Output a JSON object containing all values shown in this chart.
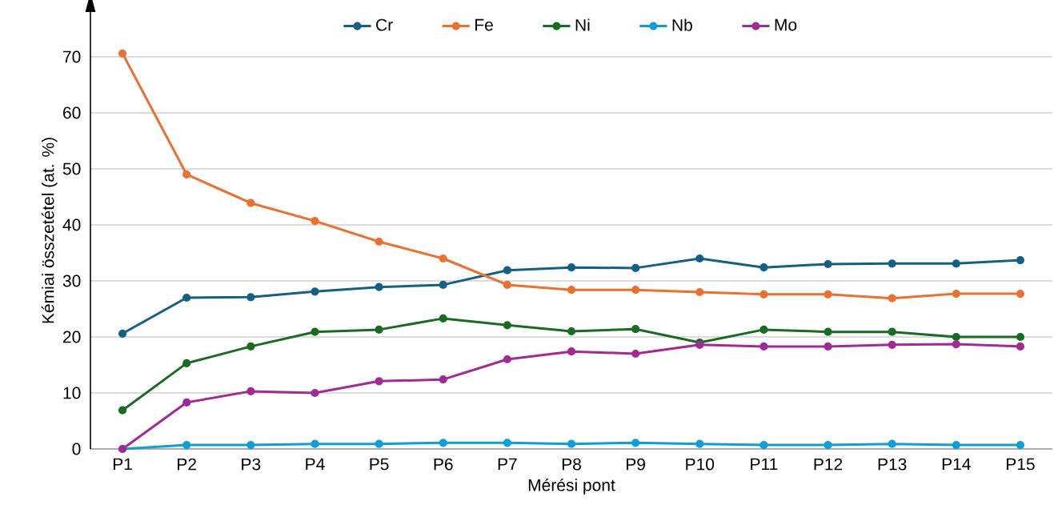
{
  "chart_data": {
    "type": "line",
    "xlabel": "Mérési pont",
    "ylabel": "Kémiai összetétel (at. %)",
    "categories": [
      "P1",
      "P2",
      "P3",
      "P4",
      "P5",
      "P6",
      "P7",
      "P8",
      "P9",
      "P10",
      "P11",
      "P12",
      "P13",
      "P14",
      "P15"
    ],
    "series": [
      {
        "name": "Cr",
        "color": "#156082",
        "values": [
          20.6,
          27.0,
          27.1,
          28.1,
          28.9,
          29.3,
          31.9,
          32.4,
          32.3,
          34.0,
          32.4,
          33.0,
          33.1,
          33.1,
          33.7
        ]
      },
      {
        "name": "Fe",
        "color": "#e97132",
        "values": [
          70.6,
          49.0,
          43.9,
          40.7,
          37.0,
          34.0,
          29.3,
          28.4,
          28.4,
          28.0,
          27.6,
          27.6,
          26.9,
          27.7,
          27.7
        ]
      },
      {
        "name": "Ni",
        "color": "#196b24",
        "values": [
          6.9,
          15.3,
          18.3,
          20.9,
          21.3,
          23.3,
          22.1,
          21.0,
          21.4,
          19.0,
          21.3,
          20.9,
          20.9,
          20.0,
          20.0
        ]
      },
      {
        "name": "Nb",
        "color": "#0f9ed5",
        "values": [
          0.0,
          0.7,
          0.7,
          0.9,
          0.9,
          1.1,
          1.1,
          0.9,
          1.1,
          0.9,
          0.7,
          0.7,
          0.9,
          0.7,
          0.7
        ]
      },
      {
        "name": "Mo",
        "color": "#a02b93",
        "values": [
          0.0,
          8.3,
          10.3,
          10.0,
          12.1,
          12.4,
          16.0,
          17.4,
          17.0,
          18.6,
          18.3,
          18.3,
          18.6,
          18.7,
          18.3
        ]
      }
    ],
    "ylim": [
      0,
      78
    ],
    "yticks": [
      0,
      10,
      20,
      30,
      40,
      50,
      60,
      70
    ],
    "grid": "y",
    "legend": "top",
    "marker": "circle",
    "line_style": "solid"
  }
}
